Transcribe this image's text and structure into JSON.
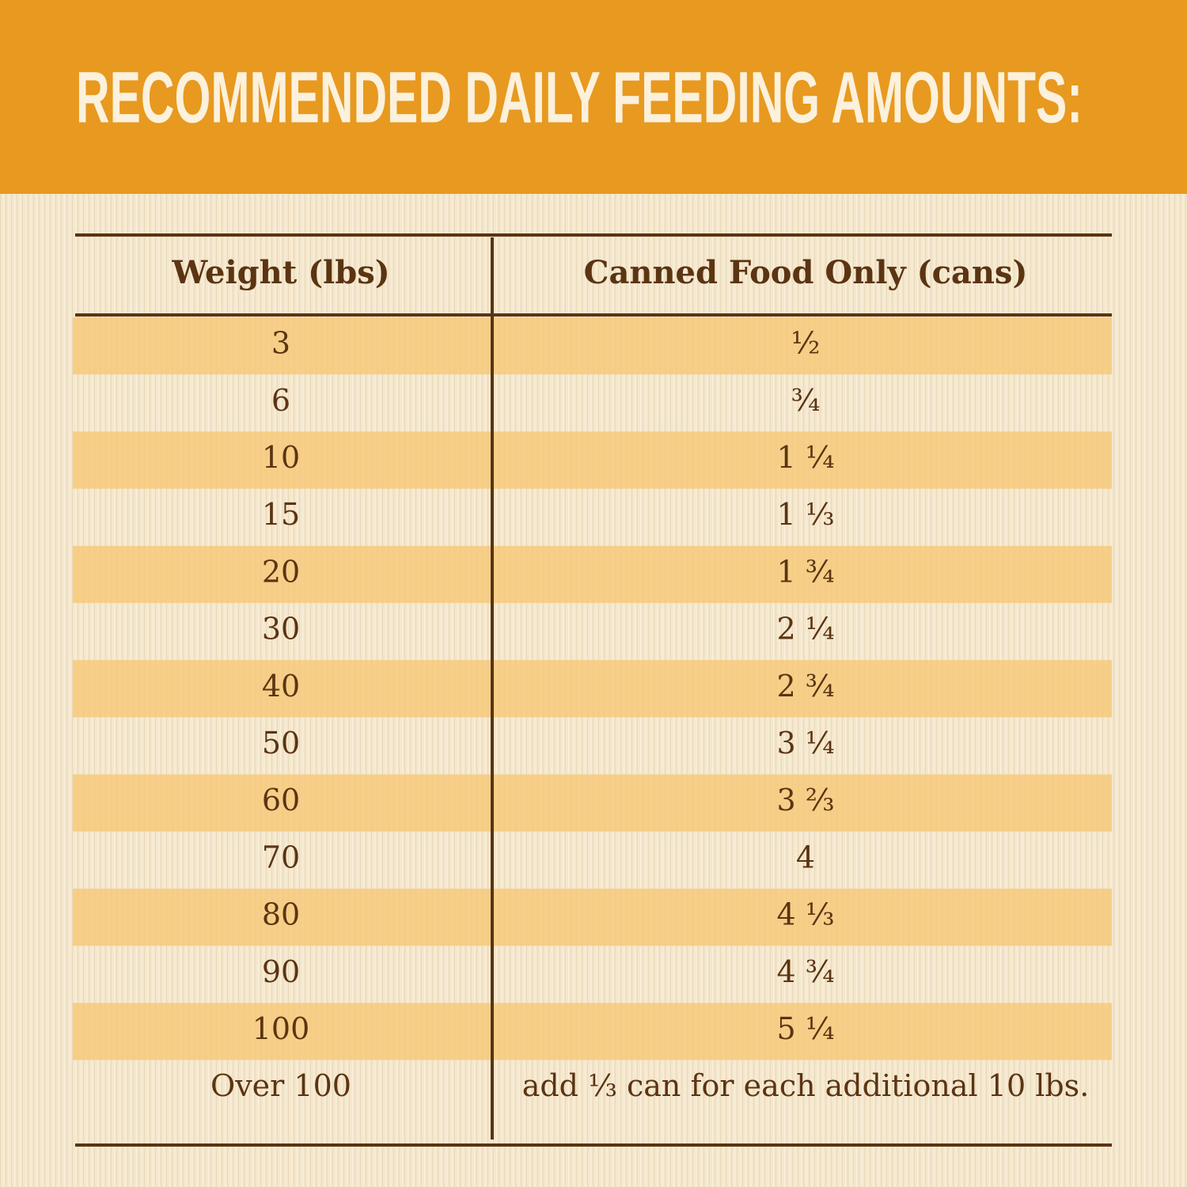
{
  "header": {
    "title": "RECOMMENDED DAILY FEEDING AMOUNTS:"
  },
  "table": {
    "headers": [
      "Weight (lbs)",
      "Canned Food Only (cans)"
    ],
    "rows": [
      [
        "3",
        "½"
      ],
      [
        "6",
        "¾"
      ],
      [
        "10",
        "1 ¼"
      ],
      [
        "15",
        "1 ⅓"
      ],
      [
        "20",
        "1 ¾"
      ],
      [
        "30",
        "2 ¼"
      ],
      [
        "40",
        "2 ¾"
      ],
      [
        "50",
        "3 ¼"
      ],
      [
        "60",
        "3 ⅔"
      ],
      [
        "70",
        "4"
      ],
      [
        "80",
        "4 ⅓"
      ],
      [
        "90",
        "4 ¾"
      ],
      [
        "100",
        "5 ¼"
      ],
      [
        "Over 100",
        "add ⅓ can for each additional 10 lbs."
      ]
    ]
  }
}
